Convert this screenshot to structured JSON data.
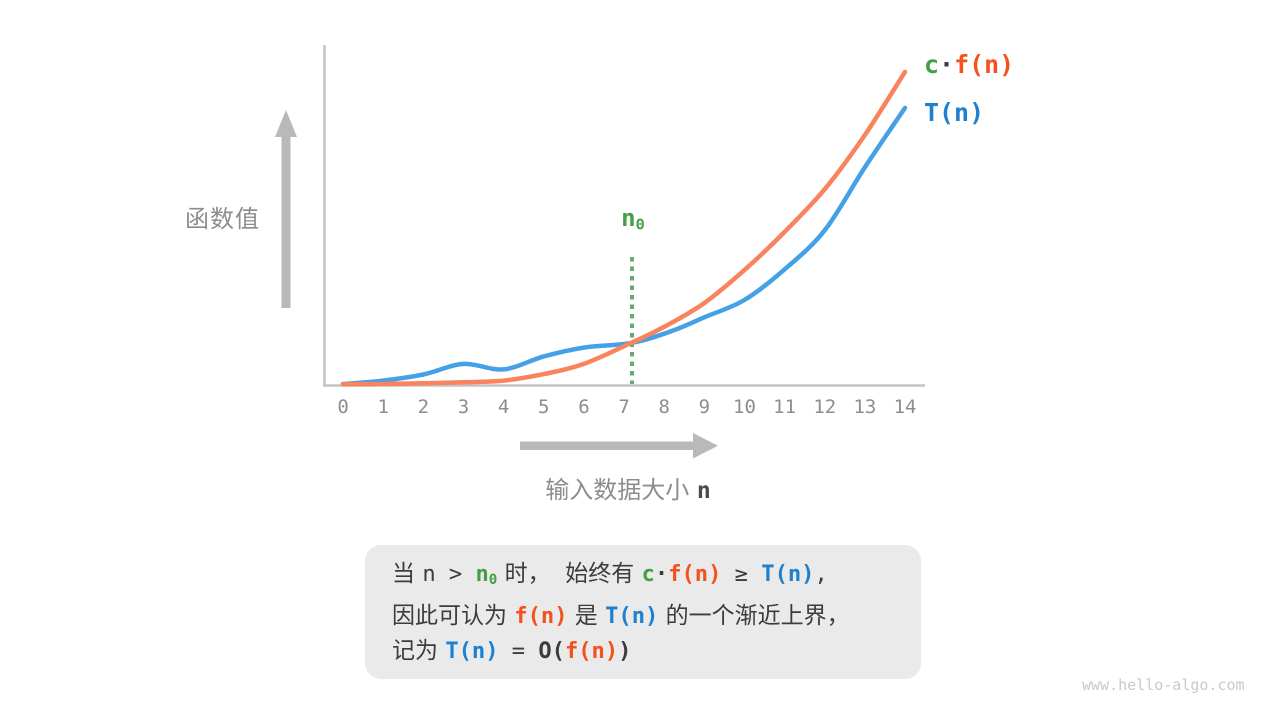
{
  "colors": {
    "curve_orange": "#f8835d",
    "curve_blue": "#45a1e6",
    "label_orange": "#f4511e",
    "label_blue": "#1e80d0",
    "green": "#43a047",
    "dotted_green": "#68aa68",
    "axis_gray": "#c4c4c4",
    "arrow_gray": "#b9b9b9",
    "text_gray": "#8d8d8d",
    "text_dark": "#3c3c3c",
    "nvar_dark": "#4b4b4b",
    "box_bg": "#eaeaea",
    "watermark_gray": "#c9c9c9"
  },
  "figure": {
    "y_axis_label": "函数值",
    "x_label_segments": [
      {
        "t": "输入数据大小 ",
        "s": "zhgray"
      },
      {
        "t": "n",
        "s": "nvar"
      }
    ],
    "n0_segments": [
      {
        "t": "n",
        "s": "green"
      },
      {
        "t": "0",
        "s": "green",
        "sub": true
      }
    ],
    "x_ticks": [
      "0",
      "1",
      "2",
      "3",
      "4",
      "5",
      "6",
      "7",
      "8",
      "9",
      "10",
      "11",
      "12",
      "13",
      "14"
    ]
  },
  "legend": {
    "cfn": [
      {
        "t": "c",
        "s": "green"
      },
      {
        "t": "·",
        "s": "bold"
      },
      {
        "t": "f(n)",
        "s": "orange"
      }
    ],
    "tn": [
      {
        "t": "T(n)",
        "s": "blue"
      }
    ]
  },
  "chart_data": {
    "type": "line",
    "title": "",
    "xlabel": "输入数据大小 n",
    "ylabel": "函数值",
    "x_range": [
      0,
      14
    ],
    "x_tick_values": [
      0,
      1,
      2,
      3,
      4,
      5,
      6,
      7,
      8,
      9,
      10,
      11,
      12,
      13,
      14
    ],
    "y_axis_numeric_labels": false,
    "grid": false,
    "legend_position": "top-right",
    "n0": 7.2,
    "annotations": [
      {
        "text": "n0",
        "x": 7.2,
        "style": "green dotted vertical line"
      }
    ],
    "series": [
      {
        "name": "c·f(n)",
        "color_key": "curve_orange",
        "points": [
          [
            0,
            0.2
          ],
          [
            1,
            0.3
          ],
          [
            2,
            0.5
          ],
          [
            3,
            0.8
          ],
          [
            4,
            1.3
          ],
          [
            5,
            3.2
          ],
          [
            6,
            6.2
          ],
          [
            7.2,
            12.5
          ],
          [
            8,
            17.1
          ],
          [
            9,
            24.1
          ],
          [
            10,
            33.8
          ],
          [
            11,
            45.0
          ],
          [
            12,
            57.6
          ],
          [
            13,
            73.5
          ],
          [
            14,
            92.1
          ]
        ]
      },
      {
        "name": "T(n)",
        "color_key": "curve_blue",
        "points": [
          [
            0,
            0.3
          ],
          [
            1,
            1.3
          ],
          [
            2,
            3.1
          ],
          [
            3,
            6.2
          ],
          [
            4,
            4.6
          ],
          [
            5,
            8.4
          ],
          [
            6,
            11.0
          ],
          [
            7.2,
            12.4
          ],
          [
            8.2,
            15.9
          ],
          [
            9,
            19.9
          ],
          [
            10,
            25.0
          ],
          [
            11,
            34.0
          ],
          [
            12,
            45.5
          ],
          [
            13,
            64.0
          ],
          [
            14,
            81.5
          ]
        ]
      }
    ]
  },
  "box": {
    "lines": [
      [
        {
          "t": "当 ",
          "s": "zh"
        },
        {
          "t": "n > ",
          "s": "mono"
        },
        {
          "t": "n",
          "s": "green"
        },
        {
          "t": "0",
          "s": "green",
          "sub": true
        },
        {
          "t": " 时，  始终有 ",
          "s": "zh"
        },
        {
          "t": "c",
          "s": "green"
        },
        {
          "t": "·",
          "s": "bold"
        },
        {
          "t": "f(n)",
          "s": "orange"
        },
        {
          "t": " ≥ ",
          "s": "mono"
        },
        {
          "t": "T(n)",
          "s": "blue"
        },
        {
          "t": ",",
          "s": "mono"
        }
      ],
      [
        {
          "t": "因此可认为 ",
          "s": "zh"
        },
        {
          "t": "f(n)",
          "s": "orange"
        },
        {
          "t": " 是 ",
          "s": "zh"
        },
        {
          "t": "T(n)",
          "s": "blue"
        },
        {
          "t": " 的一个渐近上界，",
          "s": "zh"
        }
      ],
      [
        {
          "t": "记为 ",
          "s": "zh"
        },
        {
          "t": "T(n)",
          "s": "blue"
        },
        {
          "t": " = ",
          "s": "mono"
        },
        {
          "t": "O(",
          "s": "bold"
        },
        {
          "t": "f(n)",
          "s": "orange"
        },
        {
          "t": ")",
          "s": "bold"
        }
      ]
    ]
  },
  "watermark": "www.hello-algo.com"
}
